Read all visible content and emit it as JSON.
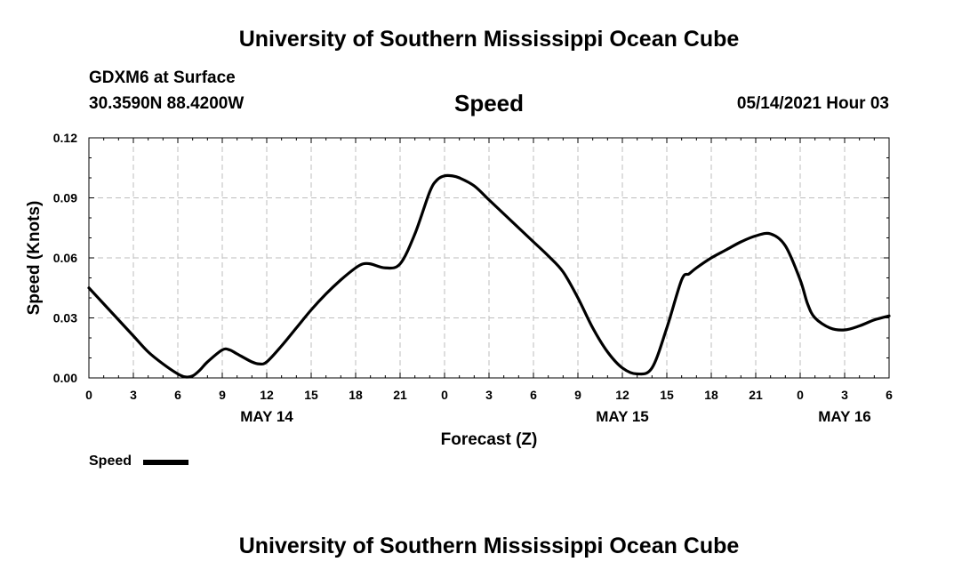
{
  "header": {
    "title": "University of Southern Mississippi Ocean Cube",
    "station": "GDXM6 at Surface",
    "coords": "30.3590N  88.4200W",
    "datetime": "05/14/2021 Hour 03"
  },
  "footer": {
    "title": "University of Southern Mississippi Ocean Cube"
  },
  "chart_data": {
    "type": "line",
    "title": "Speed",
    "xlabel": "Forecast (Z)",
    "ylabel": "Speed (Knots)",
    "xlim": [
      0,
      54
    ],
    "ylim": [
      0,
      0.12
    ],
    "x_tick_values": [
      0,
      3,
      6,
      9,
      12,
      15,
      18,
      21,
      24,
      27,
      30,
      33,
      36,
      39,
      42,
      45,
      48,
      51,
      54
    ],
    "x_tick_labels": [
      "0",
      "3",
      "6",
      "9",
      "12",
      "15",
      "18",
      "21",
      "0",
      "3",
      "6",
      "9",
      "12",
      "15",
      "18",
      "21",
      "0",
      "3",
      "6"
    ],
    "y_tick_values": [
      0,
      0.03,
      0.06,
      0.09,
      0.12
    ],
    "y_tick_labels": [
      "0.00",
      "0.03",
      "0.06",
      "0.09",
      "0.12"
    ],
    "date_labels": [
      {
        "x": 12,
        "label": "MAY 14"
      },
      {
        "x": 36,
        "label": "MAY 15"
      },
      {
        "x": 51,
        "label": "MAY 16"
      }
    ],
    "grid": true,
    "legend_position": "bottom-left",
    "series": [
      {
        "name": "Speed",
        "color": "#000000",
        "x": [
          0,
          1,
          2,
          3,
          4,
          5,
          6,
          6.5,
          7,
          7.5,
          8,
          9,
          9.5,
          10,
          11,
          11.5,
          12,
          13,
          14,
          15,
          16,
          17,
          18,
          18.5,
          19,
          20,
          21,
          22,
          23,
          23.5,
          24,
          24.5,
          25,
          26,
          27,
          28,
          29,
          30,
          31,
          32,
          33,
          34,
          35,
          36,
          37,
          38,
          39,
          40,
          40.5,
          41,
          42,
          43,
          44,
          45,
          46,
          47,
          48,
          48.5,
          49,
          50,
          51,
          52,
          53,
          54
        ],
        "values": [
          0.045,
          0.037,
          0.029,
          0.021,
          0.013,
          0.007,
          0.002,
          0.0005,
          0.001,
          0.004,
          0.008,
          0.014,
          0.014,
          0.012,
          0.008,
          0.007,
          0.008,
          0.016,
          0.025,
          0.034,
          0.042,
          0.049,
          0.055,
          0.057,
          0.057,
          0.055,
          0.057,
          0.072,
          0.093,
          0.099,
          0.101,
          0.101,
          0.1,
          0.096,
          0.089,
          0.082,
          0.075,
          0.068,
          0.061,
          0.053,
          0.04,
          0.025,
          0.013,
          0.005,
          0.002,
          0.005,
          0.025,
          0.049,
          0.052,
          0.055,
          0.06,
          0.064,
          0.068,
          0.071,
          0.072,
          0.066,
          0.049,
          0.037,
          0.03,
          0.025,
          0.024,
          0.026,
          0.029,
          0.031
        ]
      }
    ]
  }
}
